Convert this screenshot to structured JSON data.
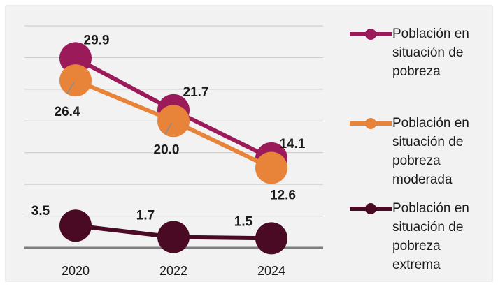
{
  "chart_data": {
    "type": "line",
    "categories": [
      "2020",
      "2022",
      "2024"
    ],
    "series": [
      {
        "name_lines": [
          "Población en",
          "situación de",
          "pobreza"
        ],
        "values": [
          29.9,
          21.7,
          14.1
        ],
        "labels": [
          "29.9",
          "21.7",
          "14.1"
        ],
        "color": "#9b1b5a"
      },
      {
        "name_lines": [
          "Población en",
          "situación de",
          "pobreza",
          "moderada"
        ],
        "values": [
          26.4,
          20.0,
          12.6
        ],
        "labels": [
          "26.4",
          "20.0",
          "12.6"
        ],
        "color": "#e8843a"
      },
      {
        "name_lines": [
          "Población en",
          "situación de",
          "pobreza",
          "extrema"
        ],
        "values": [
          3.5,
          1.7,
          1.5
        ],
        "labels": [
          "3.5",
          "1.7",
          "1.5"
        ],
        "color": "#4a0a24"
      }
    ],
    "ylim": [
      0,
      35
    ],
    "grid": true,
    "legend_position": "right",
    "title": "",
    "xlabel": "",
    "ylabel": ""
  }
}
